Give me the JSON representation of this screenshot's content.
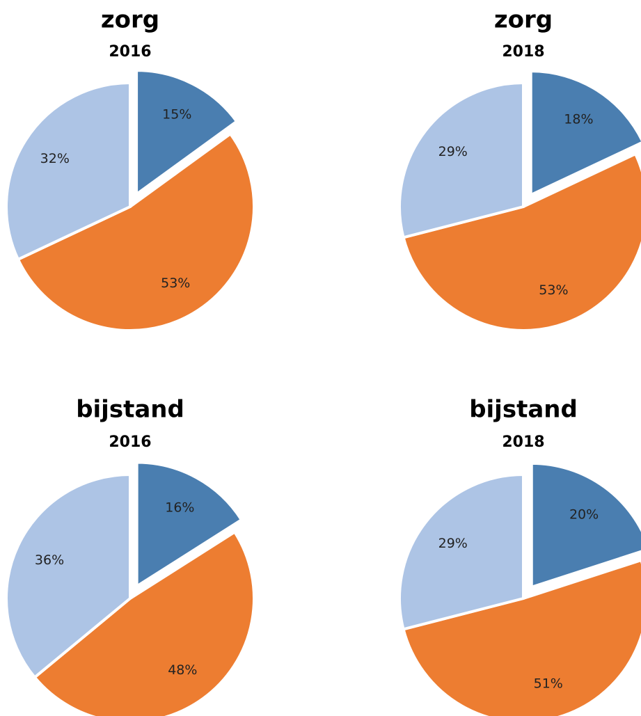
{
  "chart_data": [
    {
      "type": "pie",
      "title": "zorg",
      "subtitle": "2016",
      "values": [
        15,
        53,
        32
      ],
      "value_labels": [
        "15%",
        "53%",
        "32%"
      ],
      "colors": [
        "#4a7eb0",
        "#ed7d31",
        "#adc4e5"
      ]
    },
    {
      "type": "pie",
      "title": "zorg",
      "subtitle": "2018",
      "values": [
        18,
        53,
        29
      ],
      "value_labels": [
        "18%",
        "53%",
        "29%"
      ],
      "colors": [
        "#4a7eb0",
        "#ed7d31",
        "#adc4e5"
      ]
    },
    {
      "type": "pie",
      "title": "bijstand",
      "subtitle": "2016",
      "values": [
        16,
        48,
        36
      ],
      "value_labels": [
        "16%",
        "48%",
        "36%"
      ],
      "colors": [
        "#4a7eb0",
        "#ed7d31",
        "#adc4e5"
      ]
    },
    {
      "type": "pie",
      "title": "bijstand",
      "subtitle": "2018",
      "values": [
        20,
        51,
        29
      ],
      "value_labels": [
        "20%",
        "51%",
        "29%"
      ],
      "colors": [
        "#4a7eb0",
        "#ed7d31",
        "#adc4e5"
      ]
    }
  ]
}
